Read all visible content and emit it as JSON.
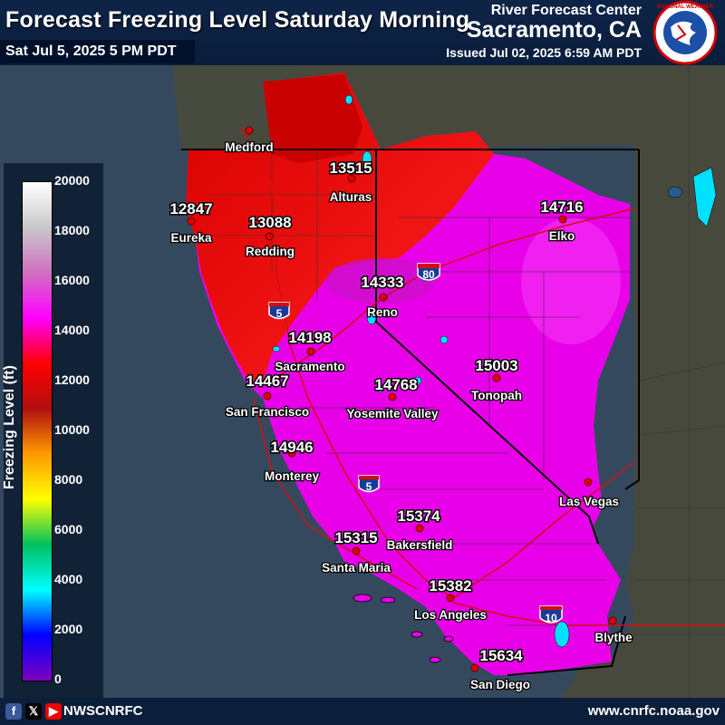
{
  "header": {
    "title": "Forecast Freezing Level Saturday Morning",
    "valid_time": "Sat Jul 5, 2025 5 PM PDT",
    "rfc_line1": "River Forecast Center",
    "rfc_line2": "Sacramento, CA",
    "issued": "Issued Jul 02, 2025 6:59 AM PDT",
    "logo_icon": "nws-logo-icon"
  },
  "legend": {
    "title": "Freezing Level (ft)",
    "ticks": [
      "20000",
      "18000",
      "16000",
      "14000",
      "12000",
      "10000",
      "8000",
      "6000",
      "4000",
      "2000",
      "0"
    ],
    "colors": [
      "#ffffff",
      "#c8c8c8",
      "#d070c0",
      "#ff00ff",
      "#ff0000",
      "#b01010",
      "#ff9900",
      "#ffff00",
      "#00c060",
      "#00ffff",
      "#0000ff",
      "#8000c0"
    ]
  },
  "highways": {
    "i80": "80",
    "i5_north": "5",
    "i5_south": "5",
    "i10": "10"
  },
  "stations": [
    {
      "name": "Medford",
      "value": ""
    },
    {
      "name": "Eureka",
      "value": "12847"
    },
    {
      "name": "Redding",
      "value": "13088"
    },
    {
      "name": "Alturas",
      "value": "13515"
    },
    {
      "name": "Elko",
      "value": "14716"
    },
    {
      "name": "Reno",
      "value": "14333"
    },
    {
      "name": "Sacramento",
      "value": "14198"
    },
    {
      "name": "San Francisco",
      "value": "14467"
    },
    {
      "name": "Yosemite Valley",
      "value": "14768"
    },
    {
      "name": "Tonopah",
      "value": "15003"
    },
    {
      "name": "Monterey",
      "value": "14946"
    },
    {
      "name": "Las Vegas",
      "value": ""
    },
    {
      "name": "Bakersfield",
      "value": "15374"
    },
    {
      "name": "Santa Maria",
      "value": "15315"
    },
    {
      "name": "Los Angeles",
      "value": "15382"
    },
    {
      "name": "Blythe",
      "value": ""
    },
    {
      "name": "San Diego",
      "value": "15634"
    }
  ],
  "footer": {
    "social_icons": [
      "facebook-icon",
      "x-icon",
      "youtube-icon"
    ],
    "handle": "NWSCNRFC",
    "website": "www.cnrfc.noaa.gov"
  }
}
